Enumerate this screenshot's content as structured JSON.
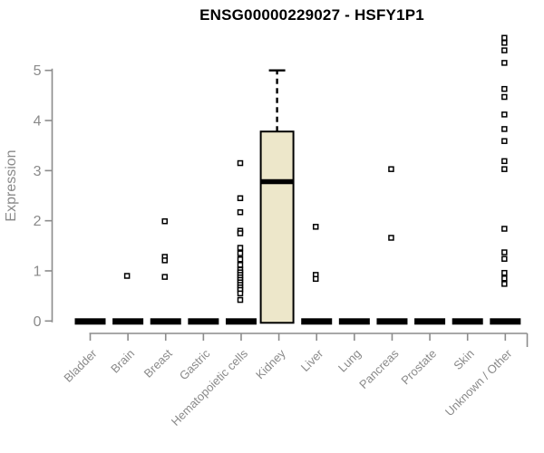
{
  "window": {
    "background": "#ffffff"
  },
  "chart_data": {
    "type": "boxplot",
    "title": "ENSG00000229027 - HSFY1P1",
    "ylabel": "Expression",
    "xlabel": "",
    "y_ticks": [
      0,
      1,
      2,
      3,
      4,
      5
    ],
    "ylim": [
      0,
      5.75
    ],
    "grid": false,
    "legend": "none",
    "categories": [
      "Bladder",
      "Brain",
      "Breast",
      "Gastric",
      "Hematopoietic cells",
      "Kidney",
      "Liver",
      "Lung",
      "Pancreas",
      "Prostate",
      "Skin",
      "Unknown / Other"
    ],
    "boxes": [
      {
        "category": "Bladder",
        "flat": true,
        "q1": 0,
        "median": 0,
        "q3": 0,
        "whisker_low": 0,
        "whisker_high": 0,
        "outliers": []
      },
      {
        "category": "Brain",
        "flat": true,
        "q1": 0,
        "median": 0,
        "q3": 0,
        "whisker_low": 0,
        "whisker_high": 0,
        "outliers": [
          0.9
        ]
      },
      {
        "category": "Breast",
        "flat": true,
        "q1": 0,
        "median": 0,
        "q3": 0,
        "whisker_low": 0,
        "whisker_high": 0,
        "outliers": [
          1.99,
          1.28,
          1.21,
          0.88
        ]
      },
      {
        "category": "Gastric",
        "flat": true,
        "q1": 0,
        "median": 0,
        "q3": 0,
        "whisker_low": 0,
        "whisker_high": 0,
        "outliers": []
      },
      {
        "category": "Hematopoietic cells",
        "flat": true,
        "q1": 0,
        "median": 0,
        "q3": 0,
        "whisker_low": 0,
        "whisker_high": 0,
        "outliers": [
          3.15,
          2.45,
          2.17,
          1.8,
          1.75,
          1.46,
          1.35,
          1.23,
          1.12,
          1.02,
          0.97,
          0.92,
          0.87,
          0.82,
          0.77,
          0.72,
          0.67,
          0.62,
          0.55,
          0.42
        ]
      },
      {
        "category": "Kidney",
        "flat": false,
        "q1": 0,
        "median": 2.78,
        "q3": 3.78,
        "whisker_low": 0,
        "whisker_high": 5.0,
        "outliers": []
      },
      {
        "category": "Liver",
        "flat": true,
        "q1": 0,
        "median": 0,
        "q3": 0,
        "whisker_low": 0,
        "whisker_high": 0,
        "outliers": [
          1.88,
          0.92,
          0.84
        ]
      },
      {
        "category": "Lung",
        "flat": true,
        "q1": 0,
        "median": 0,
        "q3": 0,
        "whisker_low": 0,
        "whisker_high": 0,
        "outliers": []
      },
      {
        "category": "Pancreas",
        "flat": true,
        "q1": 0,
        "median": 0,
        "q3": 0,
        "whisker_low": 0,
        "whisker_high": 0,
        "outliers": [
          3.03,
          1.66
        ]
      },
      {
        "category": "Prostate",
        "flat": true,
        "q1": 0,
        "median": 0,
        "q3": 0,
        "whisker_low": 0,
        "whisker_high": 0,
        "outliers": []
      },
      {
        "category": "Skin",
        "flat": true,
        "q1": 0,
        "median": 0,
        "q3": 0,
        "whisker_low": 0,
        "whisker_high": 0,
        "outliers": []
      },
      {
        "category": "Unknown / Other",
        "flat": true,
        "q1": 0,
        "median": 0,
        "q3": 0,
        "whisker_low": 0,
        "whisker_high": 0,
        "outliers": [
          5.65,
          5.55,
          5.4,
          5.15,
          4.63,
          4.47,
          4.12,
          3.83,
          3.59,
          3.19,
          3.03,
          1.84,
          1.37,
          1.24,
          0.96,
          0.85,
          0.74
        ]
      }
    ],
    "colors": {
      "box_fill": "#EDE7CA",
      "box_stroke": "#000000",
      "median": "#000000",
      "flat_bar": "#000000",
      "whisker": "#000000",
      "outlier_stroke": "#000000",
      "outlier_fill": "#ffffff",
      "axis": "#8c8c8c",
      "tick_label": "#8a8a8a",
      "title": "#000000",
      "background": "#ffffff"
    }
  }
}
